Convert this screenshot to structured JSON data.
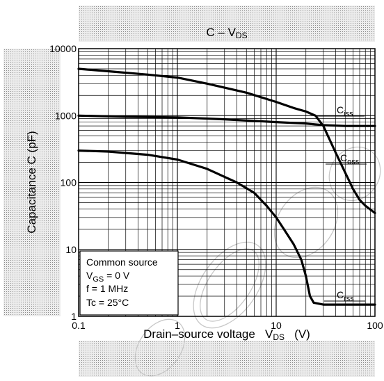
{
  "chart_data": {
    "type": "line",
    "title": {
      "main": "C – V",
      "sub": "DS"
    },
    "xlabel": {
      "main": "Drain–source voltage   V",
      "sub": "DS",
      "unit": "   (V)"
    },
    "ylabel": "Capacitance   C   (pF)",
    "x_scale": "log",
    "y_scale": "log",
    "xlim": [
      0.1,
      100
    ],
    "ylim": [
      1,
      10000
    ],
    "grid": true,
    "x_ticks": [
      {
        "value": 0.1,
        "label": "0.1"
      },
      {
        "value": 1,
        "label": "1"
      },
      {
        "value": 10,
        "label": "10"
      },
      {
        "value": 100,
        "label": "100"
      }
    ],
    "y_ticks": [
      {
        "value": 1,
        "label": "1"
      },
      {
        "value": 10,
        "label": "10"
      },
      {
        "value": 100,
        "label": "100"
      },
      {
        "value": 1000,
        "label": "1000"
      },
      {
        "value": 10000,
        "label": "10000"
      }
    ],
    "series": [
      {
        "name": "Ciss",
        "label_main": "C",
        "label_sub": "iss",
        "points": [
          [
            0.1,
            5000
          ],
          [
            0.2,
            4600
          ],
          [
            0.5,
            4100
          ],
          [
            1,
            3700
          ],
          [
            2,
            3000
          ],
          [
            5,
            2200
          ],
          [
            10,
            1600
          ],
          [
            15,
            1300
          ],
          [
            20,
            1150
          ],
          [
            25,
            1000
          ],
          [
            30,
            700
          ],
          [
            40,
            280
          ],
          [
            50,
            140
          ],
          [
            60,
            80
          ],
          [
            70,
            55
          ],
          [
            80,
            45
          ],
          [
            100,
            35
          ]
        ]
      },
      {
        "name": "Coss",
        "label_main": "C",
        "label_sub": "oss",
        "points": [
          [
            0.1,
            1000
          ],
          [
            0.3,
            960
          ],
          [
            1,
            940
          ],
          [
            3,
            880
          ],
          [
            10,
            800
          ],
          [
            20,
            760
          ],
          [
            30,
            720
          ],
          [
            50,
            700
          ],
          [
            100,
            700
          ]
        ]
      },
      {
        "name": "Crss",
        "label_main": "C",
        "label_sub": "rss",
        "points": [
          [
            0.1,
            300
          ],
          [
            0.2,
            290
          ],
          [
            0.5,
            260
          ],
          [
            1,
            220
          ],
          [
            2,
            160
          ],
          [
            4,
            100
          ],
          [
            6,
            70
          ],
          [
            8,
            45
          ],
          [
            10,
            30
          ],
          [
            12,
            20
          ],
          [
            15,
            12
          ],
          [
            18,
            7
          ],
          [
            20,
            4
          ],
          [
            22,
            2
          ],
          [
            24,
            1.6
          ],
          [
            30,
            1.5
          ],
          [
            100,
            1.5
          ]
        ]
      }
    ],
    "annotation": {
      "line1": "Common source",
      "line2_main": "V",
      "line2_sub": "GS",
      "line2_rest": " = 0 V",
      "line3": "f = 1 MHz",
      "line4": "Tc = 25°C"
    }
  }
}
